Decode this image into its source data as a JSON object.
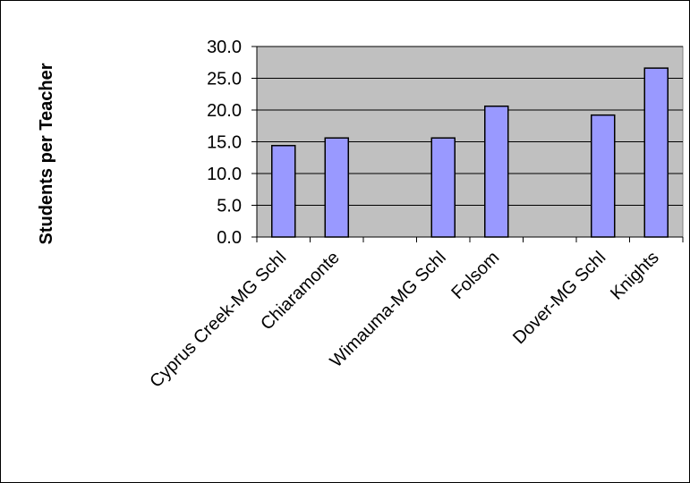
{
  "chart_data": {
    "type": "bar",
    "title": "",
    "xlabel": "",
    "ylabel": "Students per Teacher",
    "ylim": [
      0,
      30
    ],
    "yticks": [
      "0.0",
      "5.0",
      "10.0",
      "15.0",
      "20.0",
      "25.0",
      "30.0"
    ],
    "grid": true,
    "legend": "none",
    "categories": [
      "Cyprus Creek-MG Schl",
      "Chiaramonte",
      "",
      "Wimauma-MG Schl",
      "Folsom",
      "",
      "Dover-MG Schl",
      "Knights"
    ],
    "values": [
      14.4,
      15.6,
      null,
      15.6,
      20.6,
      null,
      19.2,
      26.6
    ],
    "colors": {
      "plot_background": "#c0c0c0",
      "bar_fill": "#9999ff",
      "bar_stroke": "#000000",
      "gridline": "#000000"
    }
  }
}
